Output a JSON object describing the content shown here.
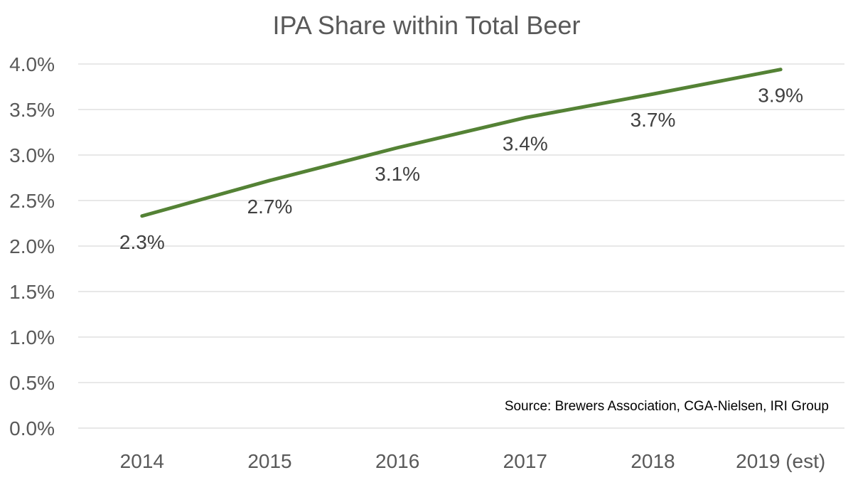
{
  "chart_data": {
    "type": "line",
    "title": "IPA Share within Total Beer",
    "categories": [
      "2014",
      "2015",
      "2016",
      "2017",
      "2018",
      "2019 (est)"
    ],
    "series": [
      {
        "name": "IPA Share",
        "values": [
          2.33,
          2.72,
          3.08,
          3.41,
          3.67,
          3.94
        ],
        "labels": [
          "2.3%",
          "2.7%",
          "3.1%",
          "3.4%",
          "3.7%",
          "3.9%"
        ],
        "color": "#548235"
      }
    ],
    "ylim": [
      0,
      4
    ],
    "yticks": [
      {
        "value": 0,
        "label": "0.0%"
      },
      {
        "value": 0.5,
        "label": "0.5%"
      },
      {
        "value": 1,
        "label": "1.0%"
      },
      {
        "value": 1.5,
        "label": "1.5%"
      },
      {
        "value": 2,
        "label": "2.0%"
      },
      {
        "value": 2.5,
        "label": "2.5%"
      },
      {
        "value": 3,
        "label": "3.0%"
      },
      {
        "value": 3.5,
        "label": "3.5%"
      },
      {
        "value": 4,
        "label": "4.0%"
      }
    ],
    "grid": true,
    "xlabel": "",
    "ylabel": "",
    "annotation": "Source: Brewers Association, CGA-Nielsen, IRI Group"
  }
}
